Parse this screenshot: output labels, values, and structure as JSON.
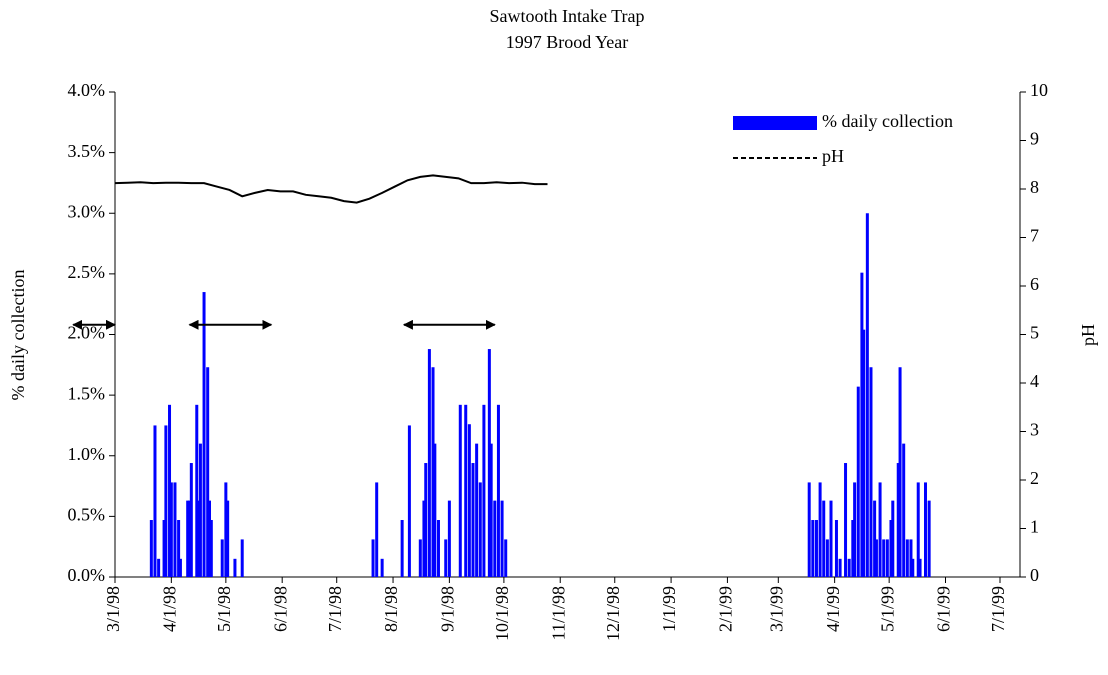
{
  "chart_data": {
    "type": "combo",
    "title": "Sawtooth Intake Trap",
    "subtitle": "1997 Brood Year",
    "ylabel": "% daily collection",
    "y2label": "pH",
    "xlim": [
      "3/1/98",
      "7/12/99"
    ],
    "xticks": [
      "3/1/98",
      "4/1/98",
      "5/1/98",
      "6/1/98",
      "7/1/98",
      "8/1/98",
      "9/1/98",
      "10/1/98",
      "11/1/98",
      "12/1/98",
      "1/1/99",
      "2/1/99",
      "3/1/99",
      "4/1/99",
      "5/1/99",
      "6/1/99",
      "7/1/99"
    ],
    "ylim": [
      0,
      4
    ],
    "yticks": [
      {
        "value": 0,
        "label": "0.0%"
      },
      {
        "value": 0.5,
        "label": "0.5%"
      },
      {
        "value": 1,
        "label": "1.0%"
      },
      {
        "value": 1.5,
        "label": "1.5%"
      },
      {
        "value": 2,
        "label": "2.0%"
      },
      {
        "value": 2.5,
        "label": "2.5%"
      },
      {
        "value": 3,
        "label": "3.0%"
      },
      {
        "value": 3.5,
        "label": "3.5%"
      },
      {
        "value": 4,
        "label": "4.0%"
      }
    ],
    "y2lim": [
      0,
      10
    ],
    "y2ticks": [
      0,
      1,
      2,
      3,
      4,
      5,
      6,
      7,
      8,
      9,
      10
    ],
    "grid": false,
    "legend": "upper right",
    "series": [
      {
        "name": "% daily collection",
        "type": "bar",
        "color": "#0000ff",
        "x": [
          "3/21/98",
          "3/23/98",
          "3/25/98",
          "3/28/98",
          "3/29/98",
          "3/31/98",
          "4/1/98",
          "4/3/98",
          "4/5/98",
          "4/6/98",
          "4/10/98",
          "4/11/98",
          "4/12/98",
          "4/15/98",
          "4/16/98",
          "4/17/98",
          "4/19/98",
          "4/21/98",
          "4/22/98",
          "4/23/98",
          "4/29/98",
          "5/1/98",
          "5/2/98",
          "5/6/98",
          "5/10/98",
          "7/21/98",
          "7/23/98",
          "7/26/98",
          "8/6/98",
          "8/10/98",
          "8/16/98",
          "8/18/98",
          "8/19/98",
          "8/21/98",
          "8/23/98",
          "8/24/98",
          "8/26/98",
          "8/30/98",
          "9/1/98",
          "9/7/98",
          "9/10/98",
          "9/12/98",
          "9/14/98",
          "9/16/98",
          "9/18/98",
          "9/20/98",
          "9/23/98",
          "9/24/98",
          "9/26/98",
          "9/28/98",
          "9/30/98",
          "10/2/98",
          "3/18/99",
          "3/20/99",
          "3/22/99",
          "3/24/99",
          "3/26/99",
          "3/28/99",
          "3/30/99",
          "4/2/99",
          "4/4/99",
          "4/7/99",
          "4/9/99",
          "4/11/99",
          "4/12/99",
          "4/14/99",
          "4/16/99",
          "4/17/99",
          "4/19/99",
          "4/21/99",
          "4/23/99",
          "4/24/99",
          "4/26/99",
          "4/28/99",
          "4/30/99",
          "5/2/99",
          "5/3/99",
          "5/6/99",
          "5/7/99",
          "5/9/99",
          "5/11/99",
          "5/13/99",
          "5/14/99",
          "5/17/99",
          "5/18/99",
          "5/21/99",
          "5/23/99"
        ],
        "values": [
          0.47,
          1.25,
          0.15,
          0.47,
          1.25,
          1.42,
          0.78,
          0.78,
          0.47,
          0.15,
          0.63,
          0.63,
          0.94,
          1.42,
          0.63,
          1.1,
          2.35,
          1.73,
          0.63,
          0.47,
          0.31,
          0.78,
          0.63,
          0.15,
          0.31,
          0.31,
          0.78,
          0.15,
          0.47,
          1.25,
          0.31,
          0.63,
          0.94,
          1.88,
          1.73,
          1.1,
          0.47,
          0.31,
          0.63,
          1.42,
          1.42,
          1.26,
          0.94,
          1.1,
          0.78,
          1.42,
          1.88,
          1.1,
          0.63,
          1.42,
          0.63,
          0.31,
          0.78,
          0.47,
          0.47,
          0.78,
          0.63,
          0.31,
          0.63,
          0.47,
          0.15,
          0.94,
          0.15,
          0.47,
          0.78,
          1.57,
          2.51,
          2.04,
          3.0,
          1.73,
          0.63,
          0.31,
          0.78,
          0.31,
          0.31,
          0.47,
          0.63,
          0.94,
          1.73,
          1.1,
          0.31,
          0.31,
          0.15,
          0.78,
          0.15,
          0.78,
          0.63
        ]
      },
      {
        "name": "pH",
        "type": "line",
        "axis": "y2",
        "color": "#000000",
        "x": [
          "3/1/98",
          "3/8/98",
          "3/15/98",
          "3/22/98",
          "3/29/98",
          "4/5/98",
          "4/12/98",
          "4/19/98",
          "4/26/98",
          "5/3/98",
          "5/10/98",
          "5/17/98",
          "5/24/98",
          "5/31/98",
          "6/7/98",
          "6/14/98",
          "6/21/98",
          "6/28/98",
          "7/5/98",
          "7/12/98",
          "7/19/98",
          "7/26/98",
          "8/2/98",
          "8/9/98",
          "8/16/98",
          "8/23/98",
          "8/30/98",
          "9/6/98",
          "9/13/98",
          "9/20/98",
          "9/27/98",
          "10/4/98",
          "10/11/98",
          "10/18/98",
          "10/25/98"
        ],
        "values": [
          8.12,
          8.13,
          8.14,
          8.12,
          8.13,
          8.13,
          8.12,
          8.12,
          8.05,
          7.98,
          7.85,
          7.92,
          7.98,
          7.95,
          7.95,
          7.88,
          7.85,
          7.82,
          7.75,
          7.72,
          7.8,
          7.92,
          8.05,
          8.18,
          8.25,
          8.28,
          8.25,
          8.22,
          8.12,
          8.12,
          8.14,
          8.12,
          8.13,
          8.1,
          8.1
        ]
      }
    ],
    "arrows": [
      {
        "start": "2/6/98",
        "end": "3/1/98",
        "y": 2.08
      },
      {
        "start": "4/11/98",
        "end": "5/26/98",
        "y": 2.08
      },
      {
        "start": "8/7/98",
        "end": "9/26/98",
        "y": 2.08
      }
    ]
  }
}
